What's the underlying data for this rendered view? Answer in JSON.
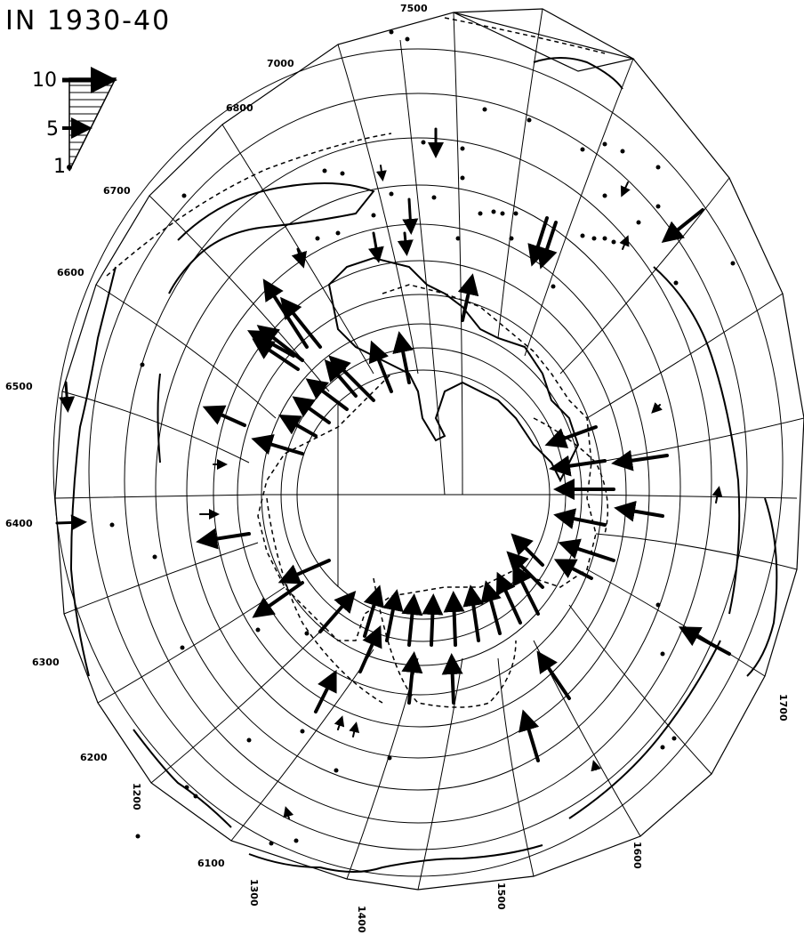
{
  "title": "IN 1930-40",
  "legend": {
    "labels": [
      "10",
      "5",
      "1"
    ]
  },
  "contour_labels": [
    "7500",
    "7000",
    "6800",
    "6700",
    "6600",
    "6500",
    "6400",
    "6300",
    "6200",
    "6100"
  ],
  "meridian_labels": [
    "1200",
    "1300",
    "1400",
    "1500",
    "1600",
    "1700"
  ]
}
